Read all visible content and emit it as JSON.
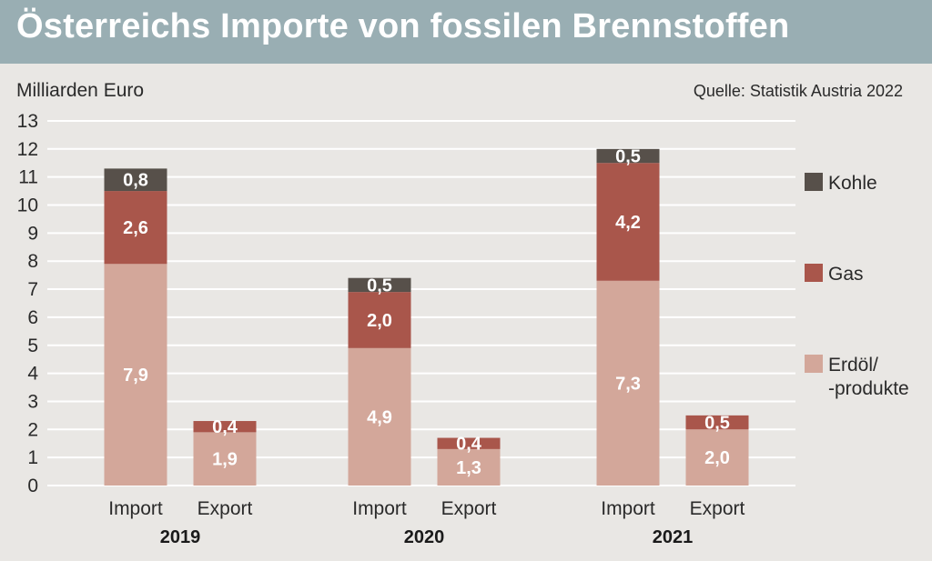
{
  "header": {
    "title": "Österreichs Importe von fossilen Brennstoffen"
  },
  "colors": {
    "title_band": "#99aeb3",
    "background": "#e9e7e4",
    "kohle": "#57504a",
    "gas": "#a9564b",
    "erdoel": "#d3a79a"
  },
  "chart_data": {
    "type": "bar",
    "stacked": true,
    "title": "Österreichs Importe von fossilen Brennstoffen",
    "ylabel": "Milliarden Euro",
    "source": "Quelle: Statistik Austria 2022",
    "ylim": [
      0,
      13
    ],
    "yticks": [
      "0",
      "1",
      "2",
      "3",
      "4",
      "5",
      "6",
      "7",
      "8",
      "9",
      "10",
      "11",
      "12",
      "13"
    ],
    "grid": true,
    "legend_position": "right",
    "groups": [
      {
        "year": "2019",
        "bars": [
          {
            "label": "Import",
            "values": {
              "erdoel": 7.9,
              "gas": 2.6,
              "kohle": 0.8
            },
            "labels": {
              "erdoel": "7,9",
              "gas": "2,6",
              "kohle": "0,8"
            }
          },
          {
            "label": "Export",
            "values": {
              "erdoel": 1.9,
              "gas": 0.4
            },
            "labels": {
              "erdoel": "1,9",
              "gas": "0,4"
            }
          }
        ]
      },
      {
        "year": "2020",
        "bars": [
          {
            "label": "Import",
            "values": {
              "erdoel": 4.9,
              "gas": 2.0,
              "kohle": 0.5
            },
            "labels": {
              "erdoel": "4,9",
              "gas": "2,0",
              "kohle": "0,5"
            }
          },
          {
            "label": "Export",
            "values": {
              "erdoel": 1.3,
              "gas": 0.4
            },
            "labels": {
              "erdoel": "1,3",
              "gas": "0,4"
            }
          }
        ]
      },
      {
        "year": "2021",
        "bars": [
          {
            "label": "Import",
            "values": {
              "erdoel": 7.3,
              "gas": 4.2,
              "kohle": 0.5
            },
            "labels": {
              "erdoel": "7,3",
              "gas": "4,2",
              "kohle": "0,5"
            }
          },
          {
            "label": "Export",
            "values": {
              "erdoel": 2.0,
              "gas": 0.5
            },
            "labels": {
              "erdoel": "2,0",
              "gas": "0,5"
            }
          }
        ]
      }
    ],
    "legend": [
      {
        "key": "kohle",
        "lines": [
          "Kohle"
        ]
      },
      {
        "key": "gas",
        "lines": [
          "Gas"
        ]
      },
      {
        "key": "erdoel",
        "lines": [
          "Erdöl/",
          "-produkte"
        ]
      }
    ]
  }
}
